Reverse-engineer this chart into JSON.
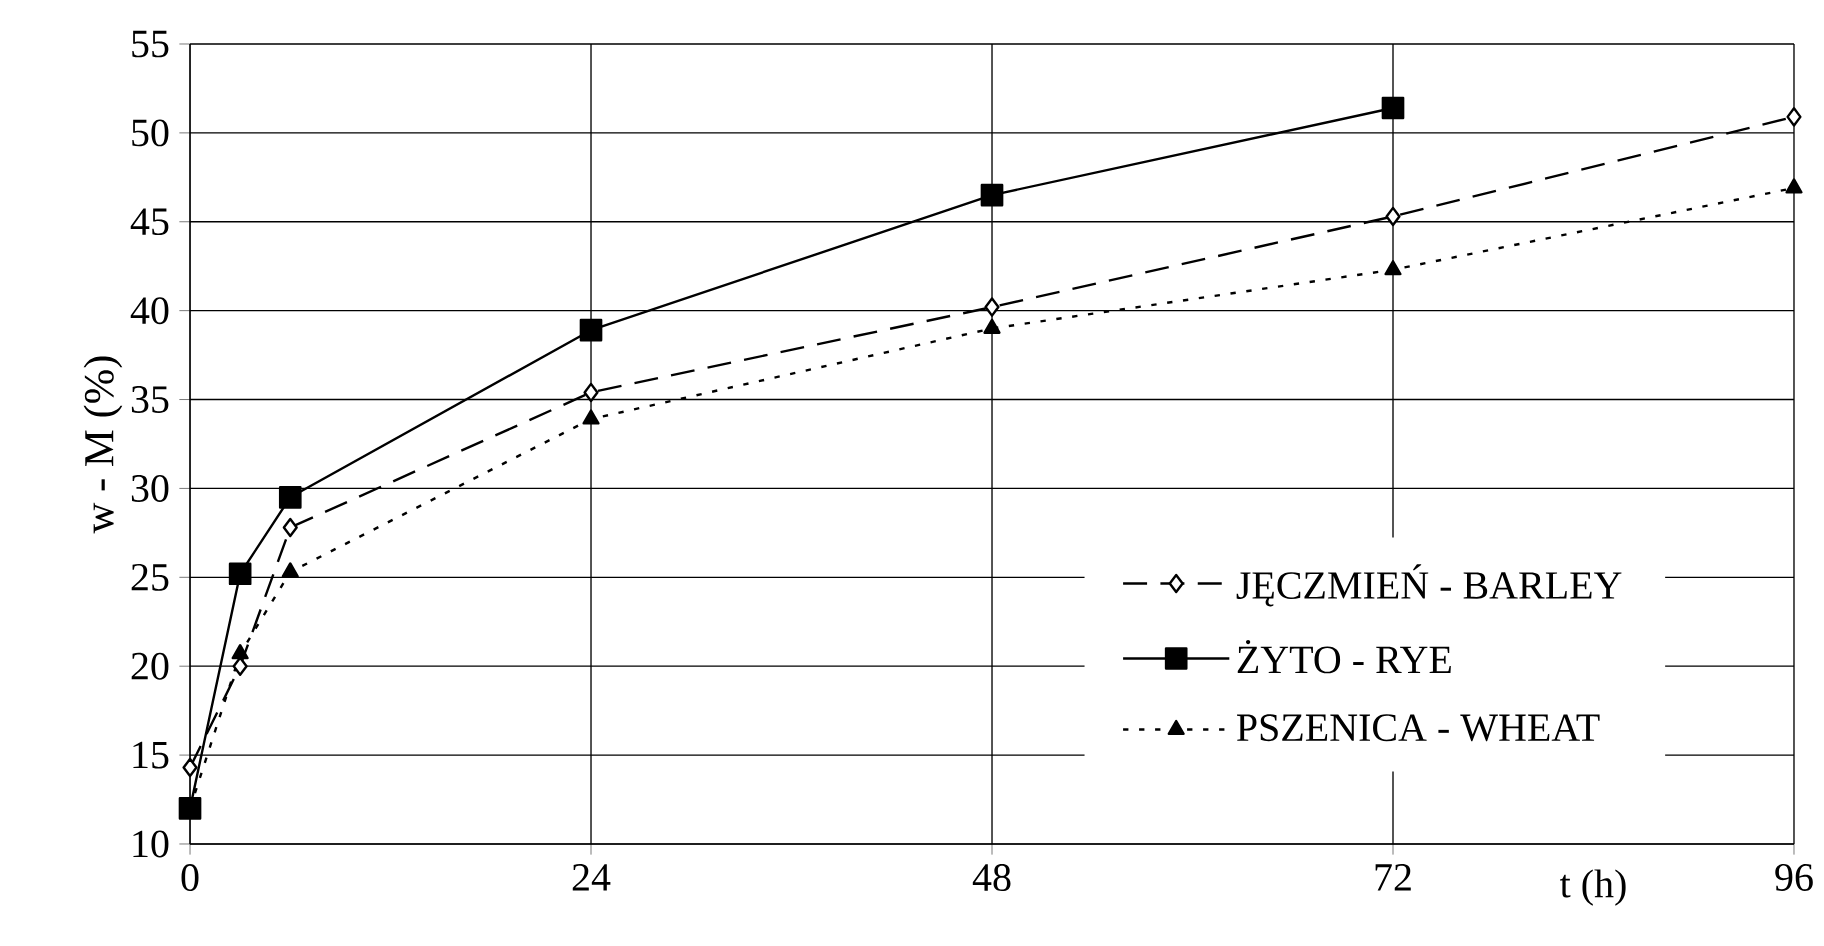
{
  "chart_data": {
    "type": "line",
    "xlabel": "t (h)",
    "ylabel": "w - M (%)",
    "xlim": [
      0,
      96
    ],
    "ylim": [
      10,
      55
    ],
    "xticks": [
      0,
      24,
      48,
      72,
      96
    ],
    "yticks": [
      10,
      15,
      20,
      25,
      30,
      35,
      40,
      45,
      50,
      55
    ],
    "grid": true,
    "legend": "bottom right",
    "series": [
      {
        "name": "JĘCZMIEŃ - BARLEY",
        "color": "#000000",
        "marker": "diamond",
        "line_style": "dashed",
        "x": [
          0,
          3,
          6,
          24,
          48,
          72,
          96
        ],
        "values": [
          14.3,
          20.0,
          27.8,
          35.4,
          40.2,
          45.3,
          50.9
        ]
      },
      {
        "name": "ŻYTO - RYE",
        "color": "#000000",
        "marker": "square",
        "line_style": "solid",
        "x": [
          0,
          3,
          6,
          24,
          48,
          72
        ],
        "values": [
          12.0,
          25.2,
          29.5,
          38.9,
          46.5,
          51.4
        ]
      },
      {
        "name": "PSZENICA - WHEAT",
        "color": "#000000",
        "marker": "triangle",
        "line_style": "dotted",
        "x": [
          0,
          3,
          6,
          24,
          48,
          72,
          96
        ],
        "values": [
          12.0,
          20.7,
          25.3,
          33.9,
          39.0,
          42.3,
          46.9
        ]
      }
    ]
  }
}
